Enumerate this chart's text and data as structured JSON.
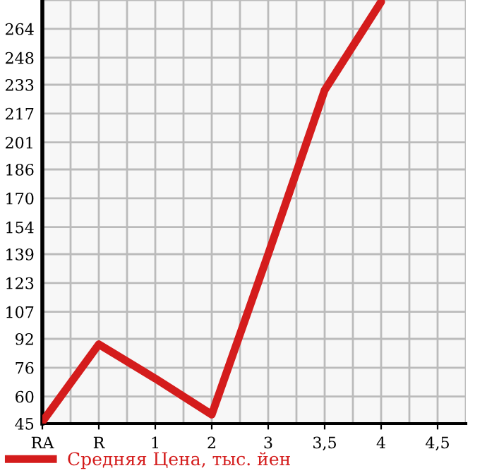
{
  "chart_data": {
    "type": "line",
    "categories": [
      "RA",
      "R",
      "1",
      "2",
      "3",
      "3,5",
      "4",
      "4,5"
    ],
    "series": [
      {
        "name": "Средняя Цена, тыс. йен",
        "color": "#d41c1c",
        "values": [
          46,
          89,
          70,
          50,
          139,
          230,
          279,
          null
        ]
      }
    ],
    "ylim": [
      45,
      280
    ],
    "yticks": [
      45,
      60,
      76,
      92,
      107,
      123,
      139,
      154,
      170,
      186,
      201,
      217,
      233,
      248,
      264
    ],
    "grid": true,
    "legend": "bottom left",
    "marker": "none",
    "line_style": "solid"
  }
}
